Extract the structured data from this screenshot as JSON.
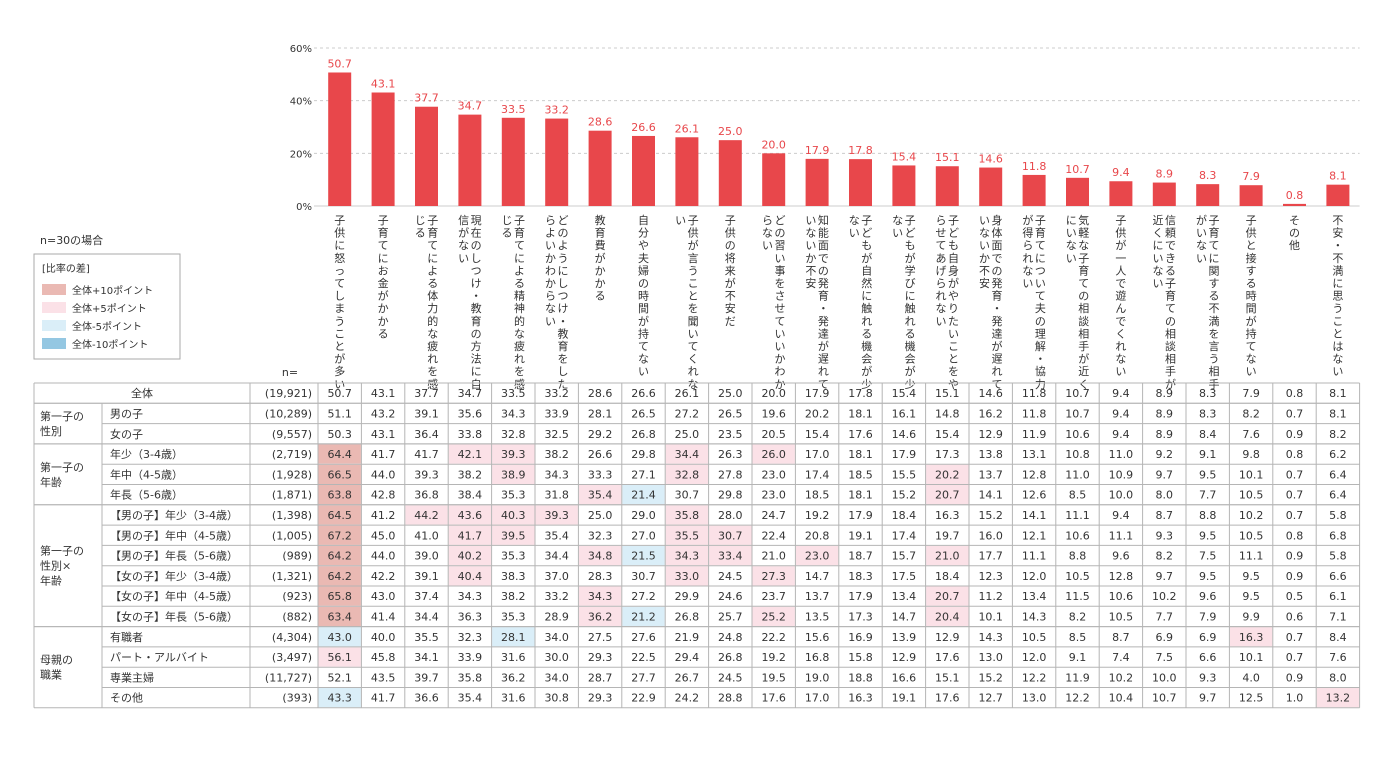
{
  "n_note": "n=30の場合",
  "n_header": "n=",
  "legend": {
    "title": "[比率の差]",
    "items": [
      {
        "label": "全体+10ポイント",
        "color": "#eab9b3"
      },
      {
        "label": "全体+5ポイント",
        "color": "#fbe1e7"
      },
      {
        "label": "全体-5ポイント",
        "color": "#daeef8"
      },
      {
        "label": "全体-10ポイント",
        "color": "#94c7e2"
      }
    ]
  },
  "colors": {
    "bar": "#e8474b",
    "value_label": "#e8474b",
    "grid": "#cccccc",
    "row_label": "#333333"
  },
  "chart_data": {
    "type": "bar",
    "ylim": [
      0,
      60
    ],
    "y_ticks": [
      "0%",
      "20%",
      "40%",
      "60%"
    ],
    "grid": true,
    "categories": [
      "子供に怒ってしまうことが多い",
      "子育てにお金がかかる",
      "子育てによる体力的な疲れを感じる",
      "現在のしつけ・教育の方法に自信がない",
      "子育てによる精神的な疲れを感じる",
      "どのようにしつけ・教育をしたらよいかわからない",
      "教育費がかかる",
      "自分や夫婦の時間が持てない",
      "子供が言うことを聞いてくれない",
      "子供の将来が不安だ",
      "どの習い事をさせていいかわからない",
      "知能面での発育・発達が遅れていないか不安",
      "子どもが自然に触れる機会が少ない",
      "子どもが学びに触れる機会が少ない",
      "子ども自身がやりたいことをやらせてあげられない",
      "身体面での発育・発達が遅れていないか不安",
      "子育てについて夫の理解・協力が得られない",
      "気軽な子育ての相談相手が近くにいない",
      "子供が一人で遊んでくれない",
      "信頼できる子育ての相談相手が近くにいない",
      "子育てに関する不満を言う相手がいない",
      "子供と接する時間が持てない",
      "その他",
      "不安・不満に思うことはない"
    ],
    "values": [
      50.7,
      43.1,
      37.7,
      34.7,
      33.5,
      33.2,
      28.6,
      26.6,
      26.1,
      25.0,
      20.0,
      17.9,
      17.8,
      15.4,
      15.1,
      14.6,
      11.8,
      10.7,
      9.4,
      8.9,
      8.3,
      7.9,
      0.8,
      8.1
    ],
    "value_labels": [
      "50.7",
      "43.1",
      "37.7",
      "34.7",
      "33.5",
      "33.2",
      "28.6",
      "26.6",
      "26.1",
      "25.0",
      "20.0",
      "17.9",
      "17.8",
      "15.4",
      "15.1",
      "14.6",
      "11.8",
      "10.7",
      "9.4",
      "8.9",
      "8.3",
      "7.9",
      "0.8",
      "8.1"
    ]
  },
  "table": {
    "groups": [
      {
        "label": "",
        "rows": [
          {
            "label": "全体",
            "n": "(19,921)",
            "v": [
              "50.7",
              "43.1",
              "37.7",
              "34.7",
              "33.5",
              "33.2",
              "28.6",
              "26.6",
              "26.1",
              "25.0",
              "20.0",
              "17.9",
              "17.8",
              "15.4",
              "15.1",
              "14.6",
              "11.8",
              "10.7",
              "9.4",
              "8.9",
              "8.3",
              "7.9",
              "0.8",
              "8.1"
            ]
          }
        ]
      },
      {
        "label": "第一子の\n性別",
        "rows": [
          {
            "label": "男の子",
            "n": "(10,289)",
            "v": [
              "51.1",
              "43.2",
              "39.1",
              "35.6",
              "34.3",
              "33.9",
              "28.1",
              "26.5",
              "27.2",
              "26.5",
              "19.6",
              "20.2",
              "18.1",
              "16.1",
              "14.8",
              "16.2",
              "11.8",
              "10.7",
              "9.4",
              "8.9",
              "8.3",
              "8.2",
              "0.7",
              "8.1"
            ]
          },
          {
            "label": "女の子",
            "n": "(9,557)",
            "v": [
              "50.3",
              "43.1",
              "36.4",
              "33.8",
              "32.8",
              "32.5",
              "29.2",
              "26.8",
              "25.0",
              "23.5",
              "20.5",
              "15.4",
              "17.6",
              "14.6",
              "15.4",
              "12.9",
              "11.9",
              "10.6",
              "9.4",
              "8.9",
              "8.4",
              "7.6",
              "0.9",
              "8.2"
            ]
          }
        ]
      },
      {
        "label": "第一子の\n年齢",
        "rows": [
          {
            "label": "年少（3-4歳）",
            "n": "(2,719)",
            "v": [
              "64.4",
              "41.7",
              "41.7",
              "42.1",
              "39.3",
              "38.2",
              "26.6",
              "29.8",
              "34.4",
              "26.3",
              "26.0",
              "17.0",
              "18.1",
              "17.9",
              "17.3",
              "13.8",
              "13.1",
              "10.8",
              "11.0",
              "9.2",
              "9.1",
              "9.8",
              "0.8",
              "6.2"
            ],
            "hl": {
              "0": "p10",
              "3": "p5",
              "4": "p5",
              "8": "p5",
              "10": "p5"
            }
          },
          {
            "label": "年中（4-5歳）",
            "n": "(1,928)",
            "v": [
              "66.5",
              "44.0",
              "39.3",
              "38.2",
              "38.9",
              "34.3",
              "33.3",
              "27.1",
              "32.8",
              "27.8",
              "23.0",
              "17.4",
              "18.5",
              "15.5",
              "20.2",
              "13.7",
              "12.8",
              "11.0",
              "10.9",
              "9.7",
              "9.5",
              "10.1",
              "0.7",
              "6.4"
            ],
            "hl": {
              "0": "p10",
              "4": "p5",
              "8": "p5",
              "14": "p5"
            }
          },
          {
            "label": "年長（5-6歳）",
            "n": "(1,871)",
            "v": [
              "63.8",
              "42.8",
              "36.8",
              "38.4",
              "35.3",
              "31.8",
              "35.4",
              "21.4",
              "30.7",
              "29.8",
              "23.0",
              "18.5",
              "18.1",
              "15.2",
              "20.7",
              "14.1",
              "12.6",
              "8.5",
              "10.0",
              "8.0",
              "7.7",
              "10.5",
              "0.7",
              "6.4"
            ],
            "hl": {
              "0": "p10",
              "6": "p5",
              "7": "m5",
              "14": "p5"
            }
          }
        ]
      },
      {
        "label": "第一子の\n性別×\n年齢",
        "rows": [
          {
            "label": "【男の子】年少（3-4歳）",
            "n": "(1,398)",
            "v": [
              "64.5",
              "41.2",
              "44.2",
              "43.6",
              "40.3",
              "39.3",
              "25.0",
              "29.0",
              "35.8",
              "28.0",
              "24.7",
              "19.2",
              "17.9",
              "18.4",
              "16.3",
              "15.2",
              "14.1",
              "11.1",
              "9.4",
              "8.7",
              "8.8",
              "10.2",
              "0.7",
              "5.8"
            ],
            "hl": {
              "0": "p10",
              "2": "p5",
              "3": "p5",
              "4": "p5",
              "5": "p5",
              "8": "p5"
            }
          },
          {
            "label": "【男の子】年中（4-5歳）",
            "n": "(1,005)",
            "v": [
              "67.2",
              "45.0",
              "41.0",
              "41.7",
              "39.5",
              "35.4",
              "32.3",
              "27.0",
              "35.5",
              "30.7",
              "22.4",
              "20.8",
              "19.1",
              "17.4",
              "19.7",
              "16.0",
              "12.1",
              "10.6",
              "11.1",
              "9.3",
              "9.5",
              "10.5",
              "0.8",
              "6.8"
            ],
            "hl": {
              "0": "p10",
              "3": "p5",
              "4": "p5",
              "8": "p5",
              "9": "p5"
            }
          },
          {
            "label": "【男の子】年長（5-6歳）",
            "n": "(989)",
            "v": [
              "64.2",
              "44.0",
              "39.0",
              "40.2",
              "35.3",
              "34.4",
              "34.8",
              "21.5",
              "34.3",
              "33.4",
              "21.0",
              "23.0",
              "18.7",
              "15.7",
              "21.0",
              "17.7",
              "11.1",
              "8.8",
              "9.6",
              "8.2",
              "7.5",
              "11.1",
              "0.9",
              "5.8"
            ],
            "hl": {
              "0": "p10",
              "3": "p5",
              "6": "p5",
              "7": "m5",
              "8": "p5",
              "9": "p5",
              "11": "p5",
              "14": "p5"
            }
          },
          {
            "label": "【女の子】年少（3-4歳）",
            "n": "(1,321)",
            "v": [
              "64.2",
              "42.2",
              "39.1",
              "40.4",
              "38.3",
              "37.0",
              "28.3",
              "30.7",
              "33.0",
              "24.5",
              "27.3",
              "14.7",
              "18.3",
              "17.5",
              "18.4",
              "12.3",
              "12.0",
              "10.5",
              "12.8",
              "9.7",
              "9.5",
              "9.5",
              "0.9",
              "6.6"
            ],
            "hl": {
              "0": "p10",
              "3": "p5",
              "8": "p5",
              "10": "p5"
            }
          },
          {
            "label": "【女の子】年中（4-5歳）",
            "n": "(923)",
            "v": [
              "65.8",
              "43.0",
              "37.4",
              "34.3",
              "38.2",
              "33.2",
              "34.3",
              "27.2",
              "29.9",
              "24.6",
              "23.7",
              "13.7",
              "17.9",
              "13.4",
              "20.7",
              "11.2",
              "13.4",
              "11.5",
              "10.6",
              "10.2",
              "9.6",
              "9.5",
              "0.5",
              "6.1"
            ],
            "hl": {
              "0": "p10",
              "6": "p5",
              "14": "p5"
            }
          },
          {
            "label": "【女の子】年長（5-6歳）",
            "n": "(882)",
            "v": [
              "63.4",
              "41.4",
              "34.4",
              "36.3",
              "35.3",
              "28.9",
              "36.2",
              "21.2",
              "26.8",
              "25.7",
              "25.2",
              "13.5",
              "17.3",
              "14.7",
              "20.4",
              "10.1",
              "14.3",
              "8.2",
              "10.5",
              "7.7",
              "7.9",
              "9.9",
              "0.6",
              "7.1"
            ],
            "hl": {
              "0": "p10",
              "6": "p5",
              "7": "m5",
              "10": "p5",
              "14": "p5"
            }
          }
        ]
      },
      {
        "label": "母親の\n職業",
        "rows": [
          {
            "label": "有職者",
            "n": "(4,304)",
            "v": [
              "43.0",
              "40.0",
              "35.5",
              "32.3",
              "28.1",
              "34.0",
              "27.5",
              "27.6",
              "21.9",
              "24.8",
              "22.2",
              "15.6",
              "16.9",
              "13.9",
              "12.9",
              "14.3",
              "10.5",
              "8.5",
              "8.7",
              "6.9",
              "6.9",
              "16.3",
              "0.7",
              "8.4"
            ],
            "hl": {
              "0": "m5",
              "4": "m5",
              "21": "p5"
            }
          },
          {
            "label": "パート・アルバイト",
            "n": "(3,497)",
            "v": [
              "56.1",
              "45.8",
              "34.1",
              "33.9",
              "31.6",
              "30.0",
              "29.3",
              "22.5",
              "29.4",
              "26.8",
              "19.2",
              "16.8",
              "15.8",
              "12.9",
              "17.6",
              "13.0",
              "12.0",
              "9.1",
              "7.4",
              "7.5",
              "6.6",
              "10.1",
              "0.7",
              "7.6"
            ],
            "hl": {
              "0": "p5"
            }
          },
          {
            "label": "専業主婦",
            "n": "(11,727)",
            "v": [
              "52.1",
              "43.5",
              "39.7",
              "35.8",
              "36.2",
              "34.0",
              "28.7",
              "27.7",
              "26.7",
              "24.5",
              "19.5",
              "19.0",
              "18.8",
              "16.6",
              "15.1",
              "15.2",
              "12.2",
              "11.9",
              "10.2",
              "10.0",
              "9.3",
              "4.0",
              "0.9",
              "8.0"
            ]
          },
          {
            "label": "その他",
            "n": "(393)",
            "v": [
              "43.3",
              "41.7",
              "36.6",
              "35.4",
              "31.6",
              "30.8",
              "29.3",
              "22.9",
              "24.2",
              "28.8",
              "17.6",
              "17.0",
              "16.3",
              "19.1",
              "17.6",
              "12.7",
              "13.0",
              "12.2",
              "10.4",
              "10.7",
              "9.7",
              "12.5",
              "1.0",
              "13.2"
            ],
            "hl": {
              "0": "m5",
              "23": "p5"
            }
          }
        ]
      }
    ]
  }
}
